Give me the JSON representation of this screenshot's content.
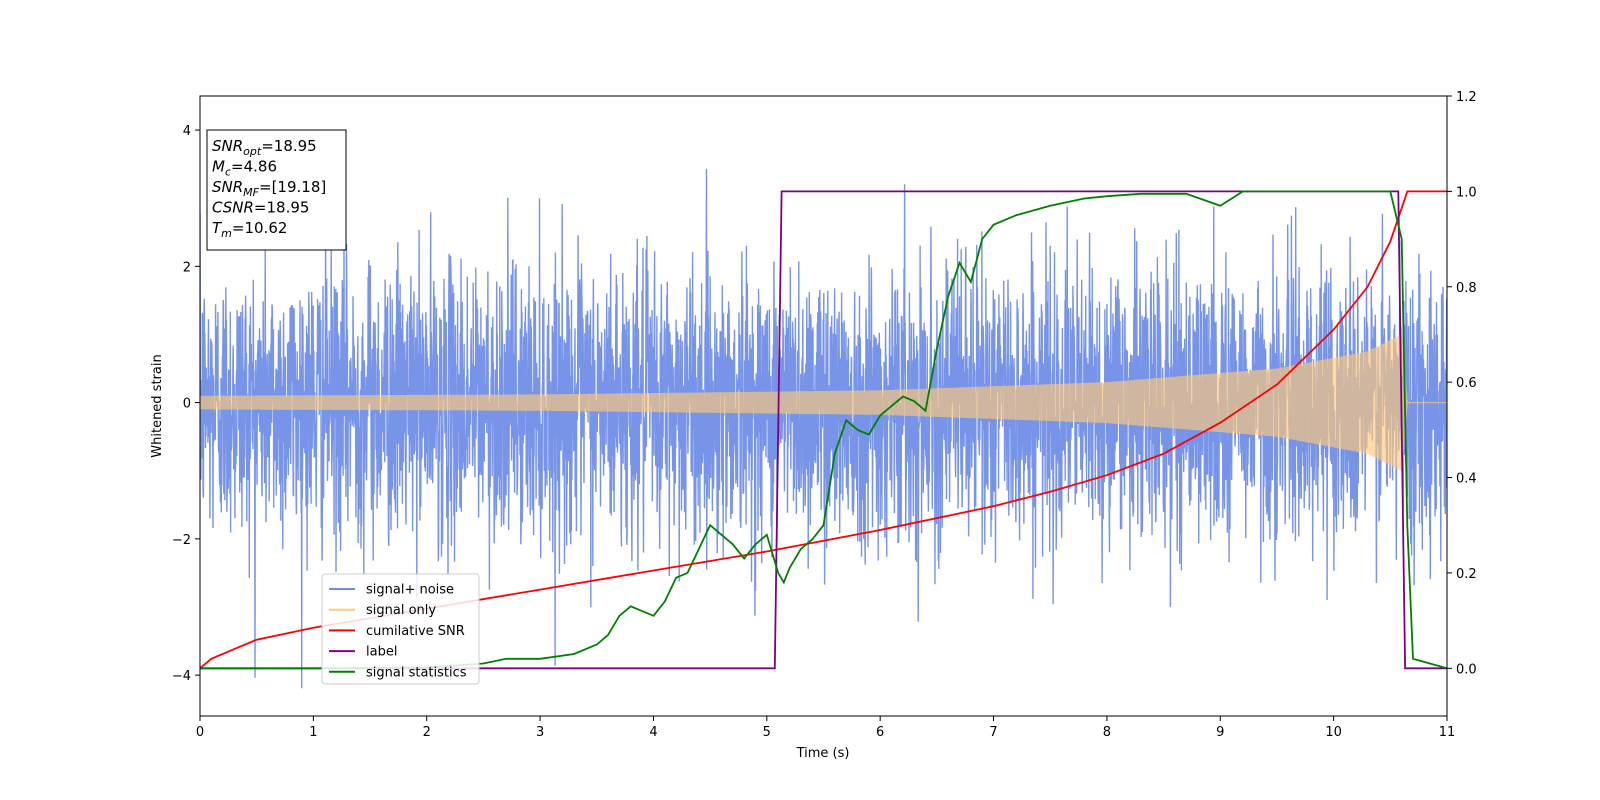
{
  "chart_data": {
    "type": "line",
    "xlabel": "Time (s)",
    "ylabel": "Whitened strain",
    "xlim": [
      0,
      11
    ],
    "ylim": [
      -4.6,
      4.5
    ],
    "y2lim": [
      -0.1,
      1.2
    ],
    "x_ticks": [
      "0",
      "1",
      "2",
      "3",
      "4",
      "5",
      "6",
      "7",
      "8",
      "9",
      "10",
      "11"
    ],
    "y_ticks": [
      "4",
      "2",
      "0",
      "−2",
      "−4"
    ],
    "y2_ticks": [
      "1.2",
      "1.0",
      "0.8",
      "0.6",
      "0.4",
      "0.2",
      "0.0"
    ],
    "info_box": [
      {
        "main": "SNR",
        "sub": "opt",
        "value": "=18.95"
      },
      {
        "main": "M",
        "sub": "c",
        "value": "=4.86"
      },
      {
        "main": "SNR",
        "sub": "MF",
        "value": "=[19.18]"
      },
      {
        "main": "CSNR",
        "sub": "",
        "value": "=18.95"
      },
      {
        "main": "T",
        "sub": "m",
        "value": "=10.62"
      }
    ],
    "legend": {
      "placement": "lower-left",
      "entries": [
        {
          "label": "signal+ noise",
          "color": "#6b8be6"
        },
        {
          "label": "signal only",
          "color": "#ffc87a"
        },
        {
          "label": "cumilative SNR",
          "color": "#ff0000"
        },
        {
          "label": "label",
          "color": "#800080"
        },
        {
          "label": "signal statistics",
          "color": "#008000"
        }
      ]
    },
    "series": [
      {
        "name": "signal+ noise",
        "axis": "left",
        "color": "#6b8be6",
        "kind": "noise",
        "sigma": 1.0,
        "x_end": 11
      },
      {
        "name": "signal only",
        "axis": "left",
        "color": "#ffc87a",
        "kind": "chirp",
        "envelope": [
          [
            0,
            0.1
          ],
          [
            3,
            0.12
          ],
          [
            6,
            0.18
          ],
          [
            8,
            0.3
          ],
          [
            9.5,
            0.5
          ],
          [
            10.3,
            0.75
          ],
          [
            10.6,
            1.0
          ],
          [
            10.65,
            0
          ]
        ]
      },
      {
        "name": "cumilative SNR",
        "axis": "right",
        "x": [
          0,
          0.1,
          0.3,
          0.5,
          1,
          1.5,
          2,
          3,
          4,
          5,
          6,
          7,
          7.5,
          8,
          8.5,
          9,
          9.5,
          10,
          10.3,
          10.5,
          10.6,
          10.65,
          11
        ],
        "y": [
          0,
          0.02,
          0.04,
          0.06,
          0.085,
          0.105,
          0.125,
          0.165,
          0.205,
          0.245,
          0.29,
          0.34,
          0.37,
          0.405,
          0.45,
          0.515,
          0.595,
          0.71,
          0.8,
          0.895,
          0.965,
          1.0,
          1.0
        ]
      },
      {
        "name": "label",
        "axis": "right",
        "x": [
          0,
          5.07,
          5.13,
          10.57,
          10.63,
          11
        ],
        "y": [
          0,
          0,
          1,
          1,
          0,
          0
        ]
      },
      {
        "name": "signal statistics",
        "axis": "right",
        "x": [
          0,
          1,
          2,
          2.5,
          2.7,
          3,
          3.3,
          3.5,
          3.6,
          3.7,
          3.8,
          3.9,
          4,
          4.1,
          4.2,
          4.3,
          4.4,
          4.5,
          4.6,
          4.7,
          4.8,
          4.9,
          5,
          5.1,
          5.15,
          5.2,
          5.3,
          5.4,
          5.5,
          5.6,
          5.7,
          5.8,
          5.9,
          6,
          6.1,
          6.2,
          6.3,
          6.4,
          6.5,
          6.6,
          6.7,
          6.8,
          6.9,
          7,
          7.2,
          7.5,
          7.8,
          8,
          8.3,
          8.7,
          9,
          9.2,
          9.5,
          10,
          10.3,
          10.5,
          10.6,
          10.65,
          10.7,
          11
        ],
        "y": [
          0,
          0,
          0.002,
          0.01,
          0.02,
          0.02,
          0.03,
          0.05,
          0.07,
          0.11,
          0.13,
          0.12,
          0.11,
          0.14,
          0.19,
          0.2,
          0.25,
          0.3,
          0.28,
          0.26,
          0.23,
          0.26,
          0.28,
          0.2,
          0.18,
          0.21,
          0.25,
          0.27,
          0.3,
          0.45,
          0.52,
          0.5,
          0.49,
          0.53,
          0.55,
          0.57,
          0.56,
          0.54,
          0.67,
          0.78,
          0.85,
          0.81,
          0.9,
          0.93,
          0.95,
          0.97,
          0.985,
          0.99,
          0.995,
          0.995,
          0.97,
          1.0,
          1.0,
          1.0,
          1.0,
          1.0,
          0.9,
          0.3,
          0.02,
          0.0
        ]
      }
    ]
  }
}
